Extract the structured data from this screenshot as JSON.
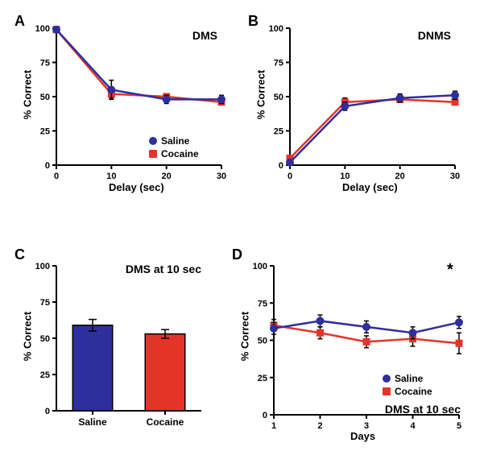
{
  "colors": {
    "saline": "#2e2e9e",
    "cocaine": "#e6332a",
    "axis": "#000000",
    "bg": "#ffffff",
    "black": "#000000"
  },
  "panelA": {
    "label": "A",
    "title": "DMS",
    "ylabel": "% Correct",
    "xlabel": "Delay (sec)",
    "ylim": [
      0,
      100
    ],
    "ytick_step": 25,
    "xticks": [
      0,
      10,
      20,
      30
    ],
    "series": {
      "saline": {
        "x": [
          0,
          10,
          20,
          30
        ],
        "y": [
          99,
          55,
          48,
          48
        ],
        "err": [
          2,
          7,
          3,
          3
        ]
      },
      "cocaine": {
        "x": [
          0,
          10,
          20,
          30
        ],
        "y": [
          99,
          52,
          50,
          46
        ],
        "err": [
          2,
          3,
          2,
          2
        ]
      }
    },
    "legend": [
      {
        "label": "Saline",
        "color": "#2e2e9e",
        "shape": "circle"
      },
      {
        "label": "Cocaine",
        "color": "#e6332a",
        "shape": "square"
      }
    ]
  },
  "panelB": {
    "label": "B",
    "title": "DNMS",
    "ylabel": "% Correct",
    "xlabel": "Delay (sec)",
    "ylim": [
      0,
      100
    ],
    "ytick_step": 25,
    "xticks": [
      0,
      10,
      20,
      30
    ],
    "series": {
      "saline": {
        "x": [
          0,
          10,
          20,
          30
        ],
        "y": [
          2,
          43,
          49,
          51
        ],
        "err": [
          2,
          3,
          3,
          3
        ]
      },
      "cocaine": {
        "x": [
          0,
          10,
          20,
          30
        ],
        "y": [
          5,
          46,
          48,
          46
        ],
        "err": [
          2,
          3,
          2,
          2
        ]
      }
    }
  },
  "panelC": {
    "label": "C",
    "title": "DMS at 10 sec",
    "ylabel": "% Correct",
    "ylim": [
      0,
      100
    ],
    "ytick_step": 25,
    "bars": [
      {
        "label": "Saline",
        "value": 59,
        "err": 4,
        "color": "#2e2e9e"
      },
      {
        "label": "Cocaine",
        "value": 53,
        "err": 3,
        "color": "#e6332a"
      }
    ]
  },
  "panelD": {
    "label": "D",
    "title": "DMS at 10 sec",
    "ylabel": "% Correct",
    "xlabel": "Days",
    "ylim": [
      0,
      100
    ],
    "ytick_step": 25,
    "xticks": [
      1,
      2,
      3,
      4,
      5
    ],
    "series": {
      "saline": {
        "x": [
          1,
          2,
          3,
          4,
          5
        ],
        "y": [
          58,
          63,
          59,
          55,
          62
        ],
        "err": [
          4,
          4,
          4,
          4,
          4
        ]
      },
      "cocaine": {
        "x": [
          1,
          2,
          3,
          4,
          5
        ],
        "y": [
          60,
          55,
          49,
          51,
          48
        ],
        "err": [
          4,
          4,
          4,
          5,
          7
        ]
      }
    },
    "legend": [
      {
        "label": "Saline",
        "color": "#2e2e9e",
        "shape": "circle"
      },
      {
        "label": "Cocaine",
        "color": "#e6332a",
        "shape": "square"
      }
    ],
    "significance": {
      "x": 5,
      "symbol": "*"
    }
  }
}
